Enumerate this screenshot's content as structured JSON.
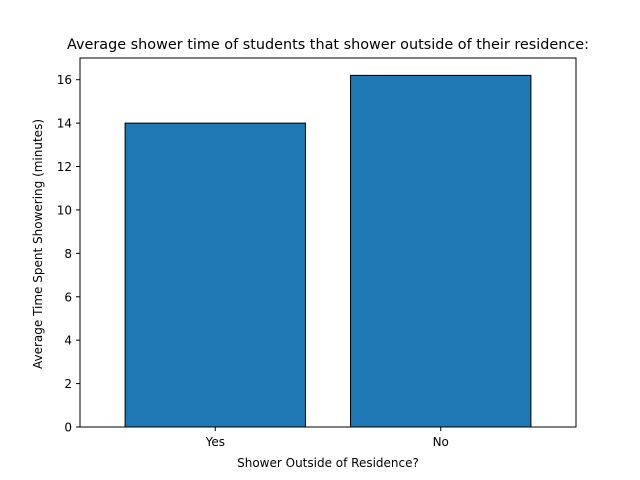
{
  "chart_data": {
    "type": "bar",
    "title": "Average shower time of students that shower outside of their residence:",
    "xlabel": "Shower Outside of Residence?",
    "ylabel": "Average Time Spent Showering (minutes)",
    "categories": [
      "Yes",
      "No"
    ],
    "values": [
      14.0,
      16.2
    ],
    "ylim": [
      0,
      17
    ],
    "yticks": [
      0,
      2,
      4,
      6,
      8,
      10,
      12,
      14,
      16
    ],
    "grid": false,
    "bar_color": "#1f77b4",
    "bar_edge_color": "#000000"
  }
}
